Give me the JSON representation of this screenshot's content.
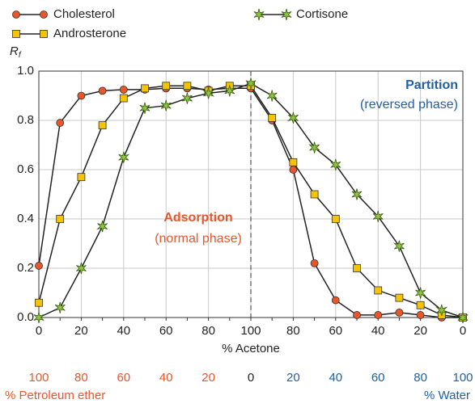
{
  "chart_data": {
    "type": "line",
    "x_label": "% Acetone",
    "y_label": "R",
    "y_label_subscript": "f",
    "categories": [
      0,
      10,
      20,
      30,
      40,
      50,
      60,
      70,
      80,
      90,
      100,
      90,
      80,
      70,
      60,
      50,
      40,
      30,
      20,
      10,
      0
    ],
    "ylim": [
      0,
      1
    ],
    "yticks": [
      {
        "value": 0,
        "label": "0.0"
      },
      0.2,
      0.4,
      0.6,
      0.8,
      {
        "value": 1,
        "label": "1.0"
      }
    ],
    "grid": true,
    "divider_index": 10,
    "series": [
      {
        "name": "Cholesterol",
        "color": "#e8562a",
        "marker": "circle",
        "values": [
          0.21,
          0.79,
          0.9,
          0.92,
          0.925,
          0.925,
          0.93,
          0.93,
          0.925,
          0.93,
          0.93,
          0.8,
          0.6,
          0.22,
          0.07,
          0.01,
          0.01,
          0.02,
          0.01,
          0.0,
          0.0
        ]
      },
      {
        "name": "Androsterone",
        "color": "#f5c400",
        "marker": "square",
        "values": [
          0.06,
          0.4,
          0.57,
          0.78,
          0.89,
          0.93,
          0.94,
          0.94,
          0.92,
          0.94,
          0.94,
          0.81,
          0.63,
          0.5,
          0.4,
          0.2,
          0.11,
          0.08,
          0.05,
          0.01,
          0.0
        ]
      },
      {
        "name": "Cortisone",
        "color": "#8dc63f",
        "marker": "star",
        "values": [
          0.0,
          0.04,
          0.2,
          0.37,
          0.65,
          0.85,
          0.86,
          0.89,
          0.91,
          0.92,
          0.95,
          0.9,
          0.81,
          0.69,
          0.62,
          0.5,
          0.41,
          0.29,
          0.1,
          0.03,
          0.0
        ]
      }
    ],
    "annotations": {
      "adsorption": {
        "title": "Adsorption",
        "subtitle": "(normal phase)",
        "color": "#e8562a"
      },
      "partition": {
        "title": "Partition",
        "subtitle": "(reversed phase)",
        "color": "#1f5fa6"
      }
    },
    "petroleum_ether": {
      "label": "% Petroleum ether",
      "ticks": [
        100,
        80,
        60,
        40,
        20
      ],
      "color": "#e8562a"
    },
    "center_tick": 0,
    "water": {
      "label": "% Water",
      "ticks": [
        20,
        40,
        60,
        80,
        100
      ],
      "color": "#1f5fa6"
    }
  }
}
